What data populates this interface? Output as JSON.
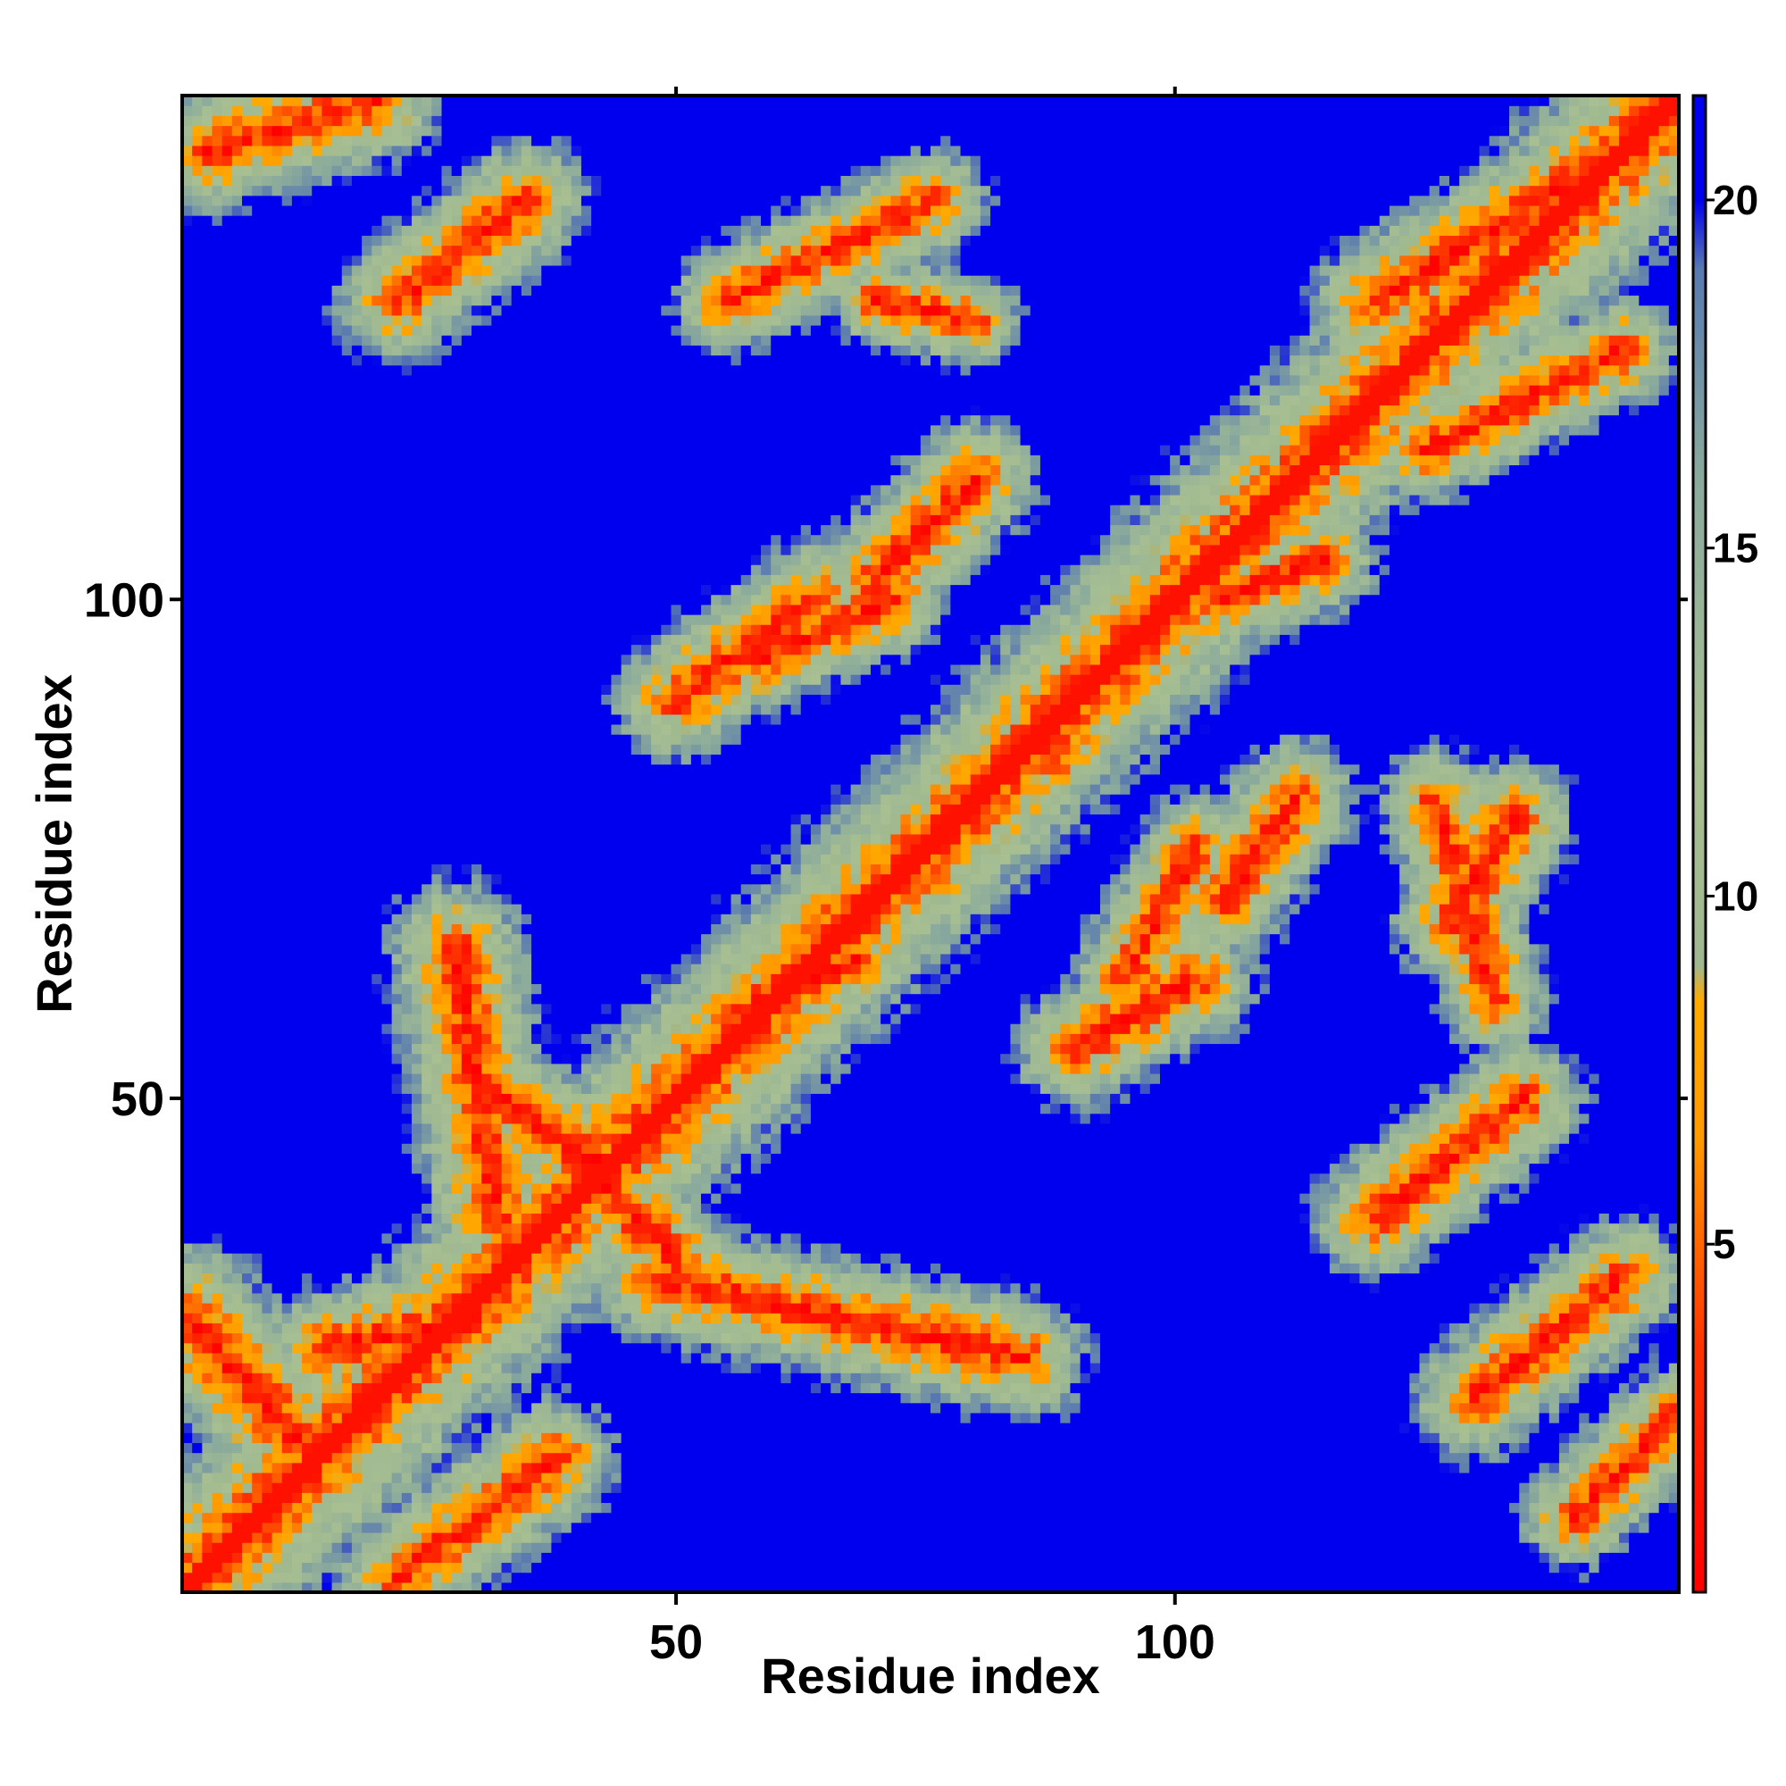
{
  "chart_data": {
    "type": "heatmap",
    "title": "",
    "xlabel": "Residue index",
    "ylabel": "Residue index",
    "x_range": [
      1,
      150
    ],
    "y_range": [
      1,
      150
    ],
    "x_ticks": [
      50,
      100
    ],
    "y_ticks": [
      50,
      100
    ],
    "colorbar": {
      "range": [
        0,
        21.5
      ],
      "ticks": [
        5,
        10,
        15,
        20
      ],
      "stops": [
        {
          "value": 0,
          "color": "#ff0000"
        },
        {
          "value": 3.5,
          "color": "#ff3300"
        },
        {
          "value": 6.5,
          "color": "#ff9900"
        },
        {
          "value": 8.5,
          "color": "#ffaa00"
        },
        {
          "value": 9.0,
          "color": "#9fb88f"
        },
        {
          "value": 12.0,
          "color": "#a8bf92"
        },
        {
          "value": 16.0,
          "color": "#8aaa9c"
        },
        {
          "value": 19.0,
          "color": "#5a7ab0"
        },
        {
          "value": 20.0,
          "color": "#0000ee"
        },
        {
          "value": 21.5,
          "color": "#0000ee"
        }
      ]
    },
    "cmap_description": "distance map: red (close) -> orange -> sage green -> blue (far)",
    "contact_segments": [
      {
        "from": [
          1,
          1
        ],
        "to": [
          150,
          150
        ],
        "width": 1.2
      },
      {
        "from": [
          1,
          28
        ],
        "to": [
          12,
          16
        ],
        "width": 1.0
      },
      {
        "from": [
          22,
          2
        ],
        "to": [
          38,
          14
        ],
        "width": 0.8
      },
      {
        "from": [
          15,
          25
        ],
        "to": [
          30,
          28
        ],
        "width": 0.8
      },
      {
        "from": [
          22,
          130
        ],
        "to": [
          35,
          140
        ],
        "width": 0.8
      },
      {
        "from": [
          3,
          145
        ],
        "to": [
          20,
          150
        ],
        "width": 0.8
      },
      {
        "from": [
          28,
          65
        ],
        "to": [
          32,
          38
        ],
        "width": 0.9
      },
      {
        "from": [
          32,
          50
        ],
        "to": [
          42,
          44
        ],
        "width": 0.8
      },
      {
        "from": [
          40,
          44
        ],
        "to": [
          50,
          34
        ],
        "width": 0.8
      },
      {
        "from": [
          48,
          32
        ],
        "to": [
          85,
          24
        ],
        "width": 0.8
      },
      {
        "from": [
          55,
          58
        ],
        "to": [
          68,
          64
        ],
        "width": 0.7
      },
      {
        "from": [
          50,
          90
        ],
        "to": [
          64,
          100
        ],
        "width": 0.8
      },
      {
        "from": [
          58,
          94
        ],
        "to": [
          72,
          100
        ],
        "width": 0.7
      },
      {
        "from": [
          70,
          102
        ],
        "to": [
          80,
          112
        ],
        "width": 0.8
      },
      {
        "from": [
          55,
          130
        ],
        "to": [
          76,
          140
        ],
        "width": 0.7
      },
      {
        "from": [
          70,
          130
        ],
        "to": [
          80,
          128
        ],
        "width": 0.6
      },
      {
        "from": [
          85,
          86
        ],
        "to": [
          88,
          84
        ],
        "width": 0.6
      },
      {
        "from": [
          90,
          55
        ],
        "to": [
          102,
          62
        ],
        "width": 0.8
      },
      {
        "from": [
          95,
          62
        ],
        "to": [
          102,
          75
        ],
        "width": 0.7
      },
      {
        "from": [
          105,
          70
        ],
        "to": [
          112,
          80
        ],
        "width": 0.8
      },
      {
        "from": [
          104,
          100
        ],
        "to": [
          115,
          104
        ],
        "width": 0.7
      },
      {
        "from": [
          120,
          38
        ],
        "to": [
          135,
          50
        ],
        "width": 0.8
      },
      {
        "from": [
          128,
          68
        ],
        "to": [
          134,
          78
        ],
        "width": 0.8
      },
      {
        "from": [
          126,
          80
        ],
        "to": [
          132,
          60
        ],
        "width": 0.7
      },
      {
        "from": [
          130,
          20
        ],
        "to": [
          145,
          32
        ],
        "width": 0.8
      },
      {
        "from": [
          140,
          8
        ],
        "to": [
          150,
          18
        ],
        "width": 0.7
      },
      {
        "from": [
          120,
          130
        ],
        "to": [
          145,
          145
        ],
        "width": 0.8
      },
      {
        "from": [
          125,
          115
        ],
        "to": [
          145,
          125
        ],
        "width": 0.7
      }
    ]
  }
}
